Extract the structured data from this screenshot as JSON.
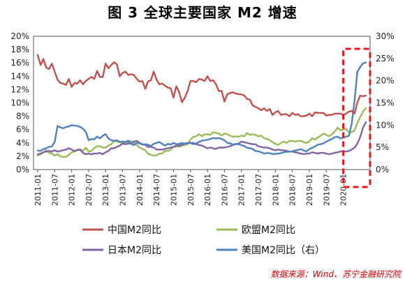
{
  "chart_data": {
    "type": "line",
    "title": "图 3  全球主要国家 M2 增速",
    "source": "数据来源：Wind、苏宁金融研究院",
    "y_left": {
      "lim": [
        0,
        20
      ],
      "ticks": [
        "0%",
        "2%",
        "4%",
        "6%",
        "8%",
        "10%",
        "12%",
        "14%",
        "16%",
        "18%",
        "20%"
      ]
    },
    "y_right": {
      "lim": [
        0,
        30
      ],
      "ticks": [
        "0%",
        "5%",
        "10%",
        "15%",
        "20%",
        "25%",
        "30%"
      ]
    },
    "x_ticks": [
      "2011-01",
      "2011-07",
      "2012-01",
      "2012-07",
      "2013-01",
      "2013-07",
      "2014-01",
      "2014-07",
      "2015-01",
      "2015-07",
      "2016-01",
      "2016-07",
      "2017-01",
      "2017-07",
      "2018-01",
      "2018-07",
      "2019-01",
      "2019-07",
      "2020-01"
    ],
    "highlight": "2020 rightmost months boxed with red dashed rectangle",
    "series": [
      {
        "name": "中国M2同比",
        "axis": "left",
        "color": "#c0504d",
        "values": [
          17.2,
          15.7,
          16.6,
          15.3,
          15.1,
          15.9,
          14.7,
          13.5,
          13.0,
          12.9,
          12.7,
          13.6,
          12.4,
          13.0,
          12.9,
          13.4,
          12.8,
          13.3,
          13.6,
          13.9,
          13.6,
          14.8,
          13.9,
          13.9,
          15.9,
          15.2,
          15.7,
          16.1,
          15.8,
          14.0,
          14.5,
          14.7,
          14.2,
          14.3,
          14.2,
          13.6,
          13.2,
          13.3,
          12.1,
          13.2,
          13.4,
          14.7,
          13.5,
          12.8,
          12.9,
          12.6,
          12.3,
          12.2,
          10.8,
          12.5,
          11.6,
          10.1,
          10.8,
          11.8,
          13.3,
          13.3,
          13.1,
          13.6,
          13.5,
          13.3,
          14.0,
          13.3,
          13.4,
          12.8,
          11.8,
          11.8,
          10.2,
          11.3,
          11.5,
          11.6,
          11.4,
          11.3,
          11.3,
          11.1,
          10.6,
          10.5,
          9.6,
          9.4,
          9.2,
          8.9,
          9.2,
          8.8,
          9.1,
          8.2,
          8.6,
          8.8,
          8.2,
          8.3,
          8.3,
          8.0,
          8.5,
          8.2,
          8.3,
          8.0,
          8.0,
          8.1,
          8.4,
          8.0,
          8.6,
          8.5,
          8.5,
          8.5,
          8.1,
          8.2,
          8.2,
          8.4,
          8.4,
          8.4,
          8.2,
          8.4,
          8.7,
          8.8,
          8.4,
          10.1,
          11.1,
          11.0,
          11.1
        ]
      },
      {
        "name": "欧盟M2同比",
        "axis": "left",
        "color": "#9bbb59",
        "values": [
          2.1,
          2.3,
          2.6,
          2.9,
          2.5,
          2.4,
          2.1,
          2.3,
          2.0,
          1.9,
          1.9,
          2.2,
          2.6,
          2.7,
          3.0,
          3.0,
          2.8,
          3.3,
          2.7,
          2.8,
          3.2,
          3.5,
          3.5,
          3.3,
          3.3,
          3.6,
          3.8,
          4.3,
          4.2,
          4.1,
          4.0,
          4.1,
          4.1,
          4.3,
          4.0,
          3.7,
          3.3,
          3.1,
          2.9,
          2.4,
          2.2,
          2.1,
          2.1,
          2.4,
          2.4,
          2.8,
          2.8,
          3.0,
          3.4,
          3.7,
          3.4,
          3.6,
          3.7,
          3.8,
          4.5,
          4.9,
          5.0,
          5.3,
          5.0,
          5.3,
          5.3,
          5.2,
          5.6,
          5.5,
          5.4,
          5.1,
          5.4,
          5.3,
          5.1,
          4.9,
          5.0,
          4.9,
          5.1,
          5.0,
          5.5,
          5.2,
          5.3,
          5.2,
          5.0,
          5.1,
          4.7,
          4.6,
          4.4,
          4.1,
          3.9,
          3.7,
          4.0,
          4.2,
          4.0,
          4.3,
          4.3,
          4.2,
          4.3,
          4.3,
          4.1,
          4.0,
          4.2,
          4.7,
          4.5,
          4.8,
          5.1,
          5.4,
          5.2,
          5.0,
          5.3,
          5.7,
          6.3,
          5.9,
          6.0,
          6.1,
          5.6,
          5.6,
          5.9,
          7.0,
          7.9,
          8.7,
          9.2
        ]
      },
      {
        "name": "日本M2同比",
        "axis": "left",
        "color": "#8064a2",
        "values": [
          2.3,
          2.4,
          2.6,
          2.7,
          2.8,
          2.7,
          2.9,
          2.7,
          2.8,
          2.9,
          3.0,
          3.2,
          3.0,
          2.8,
          2.9,
          3.0,
          2.5,
          2.3,
          2.4,
          2.3,
          2.4,
          2.4,
          2.5,
          2.3,
          2.6,
          2.8,
          3.2,
          3.2,
          3.4,
          3.6,
          3.9,
          3.8,
          3.9,
          3.9,
          4.2,
          4.3,
          4.0,
          3.8,
          3.7,
          3.4,
          3.4,
          3.3,
          3.0,
          3.0,
          3.0,
          3.1,
          3.2,
          3.3,
          3.4,
          3.5,
          3.6,
          3.7,
          3.9,
          4.0,
          4.0,
          4.0,
          3.8,
          3.7,
          3.6,
          3.4,
          3.2,
          3.3,
          3.2,
          3.1,
          3.3,
          3.3,
          3.3,
          3.4,
          3.5,
          3.7,
          3.8,
          3.9,
          4.2,
          4.1,
          4.0,
          3.9,
          3.8,
          3.8,
          3.5,
          3.4,
          3.3,
          3.3,
          3.2,
          3.0,
          2.9,
          3.0,
          2.9,
          2.9,
          2.8,
          2.7,
          2.7,
          2.6,
          2.5,
          2.4,
          2.3,
          2.4,
          2.4,
          2.6,
          2.5,
          2.4,
          2.5,
          2.5,
          2.4,
          2.3,
          2.4,
          2.5,
          2.6,
          2.7,
          2.8,
          2.7,
          2.8,
          3.0,
          3.3,
          3.9,
          4.9,
          6.3,
          7.1
        ]
      },
      {
        "name": "美国M2同比（右）",
        "axis": "right",
        "color": "#4f81bd",
        "values": [
          4.3,
          4.2,
          4.6,
          4.8,
          5.1,
          5.2,
          6.2,
          9.8,
          9.5,
          9.3,
          9.6,
          9.7,
          10.0,
          9.9,
          9.8,
          9.6,
          9.2,
          8.5,
          6.6,
          6.9,
          6.8,
          7.4,
          7.0,
          7.6,
          8.0,
          7.0,
          6.6,
          6.5,
          6.6,
          6.2,
          6.3,
          6.2,
          6.5,
          5.8,
          5.5,
          6.0,
          5.9,
          5.6,
          5.7,
          5.6,
          5.3,
          5.8,
          6.0,
          6.2,
          5.8,
          5.4,
          5.8,
          5.6,
          6.0,
          5.7,
          5.8,
          6.0,
          5.8,
          5.9,
          6.0,
          5.7,
          5.9,
          6.2,
          6.5,
          6.6,
          6.7,
          6.9,
          7.1,
          7.0,
          7.1,
          6.9,
          6.6,
          6.0,
          5.9,
          5.6,
          5.8,
          5.7,
          5.5,
          5.3,
          4.9,
          4.8,
          4.6,
          4.2,
          4.1,
          3.9,
          3.6,
          3.7,
          3.7,
          3.5,
          3.5,
          3.6,
          3.7,
          3.9,
          4.0,
          4.0,
          4.1,
          4.3,
          4.4,
          4.6,
          4.3,
          4.1,
          4.6,
          4.9,
          5.2,
          5.6,
          5.7,
          5.9,
          6.3,
          6.6,
          6.9,
          7.3,
          7.4,
          7.0,
          7.2,
          7.4,
          7.6,
          10.3,
          15.6,
          22.0,
          23.1,
          23.9,
          24.1
        ]
      }
    ],
    "legend": {
      "placement": "bottom",
      "entries": [
        "中国M2同比",
        "欧盟M2同比",
        "日本M2同比",
        "美国M2同比（右）"
      ]
    }
  }
}
